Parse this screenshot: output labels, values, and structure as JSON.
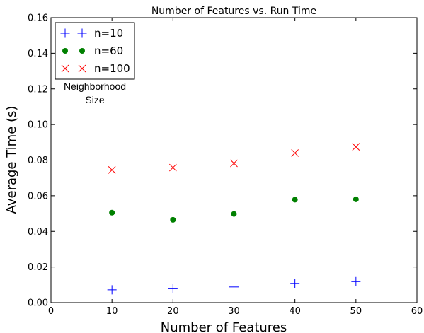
{
  "chart_data": {
    "type": "scatter",
    "title": "Number of Features vs. Run Time",
    "xlabel": "Number of Features",
    "ylabel": "Average Time (s)",
    "xlim": [
      0,
      60
    ],
    "ylim": [
      0.0,
      0.16
    ],
    "x_ticks": [
      "0",
      "10",
      "20",
      "30",
      "40",
      "50",
      "60"
    ],
    "y_ticks": [
      "0.00",
      "0.02",
      "0.04",
      "0.06",
      "0.08",
      "0.10",
      "0.12",
      "0.14",
      "0.16"
    ],
    "grid": false,
    "legend": {
      "placement": "top-left",
      "title_lines": [
        "Neighborhood",
        "Size"
      ]
    },
    "series": [
      {
        "name": "n=10",
        "marker": "plus",
        "color": "#0000ff",
        "points": [
          [
            10,
            0.0072
          ],
          [
            20,
            0.0078
          ],
          [
            30,
            0.0088
          ],
          [
            40,
            0.0108
          ],
          [
            50,
            0.0118
          ]
        ]
      },
      {
        "name": "n=60",
        "marker": "circle",
        "color": "#008000",
        "points": [
          [
            10,
            0.0505
          ],
          [
            20,
            0.0465
          ],
          [
            30,
            0.0498
          ],
          [
            40,
            0.0578
          ],
          [
            50,
            0.058
          ]
        ]
      },
      {
        "name": "n=100",
        "marker": "x",
        "color": "#ff0000",
        "points": [
          [
            10,
            0.0745
          ],
          [
            20,
            0.0758
          ],
          [
            30,
            0.0782
          ],
          [
            40,
            0.084
          ],
          [
            50,
            0.0875
          ]
        ]
      }
    ]
  }
}
